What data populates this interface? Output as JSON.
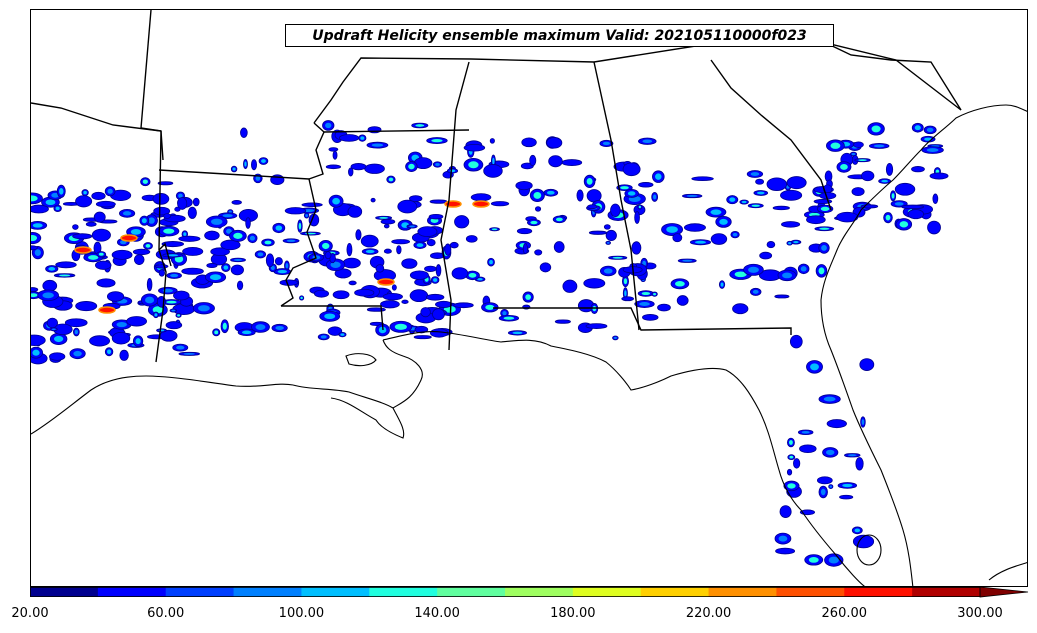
{
  "title": "Updraft Helicity ensemble maximum Valid: 202105110000f023",
  "colorbar": {
    "ticks": [
      "20.00",
      "60.00",
      "100.00",
      "140.00",
      "180.00",
      "220.00",
      "260.00",
      "300.00"
    ],
    "tick_values": [
      20,
      60,
      100,
      140,
      180,
      220,
      260,
      300
    ],
    "min": 20,
    "max": 300,
    "extend": "max",
    "colors": [
      "#00008f",
      "#0000ff",
      "#0040ff",
      "#0080ff",
      "#00bfff",
      "#20ffdf",
      "#60ff9f",
      "#9fff60",
      "#dfff20",
      "#ffd000",
      "#ff9000",
      "#ff5000",
      "#ff1000",
      "#b00000",
      "#7f0000"
    ]
  },
  "map": {
    "region": "Southeastern United States",
    "basemap": [
      "state-borders",
      "coastlines"
    ],
    "field": "updraft helicity"
  }
}
